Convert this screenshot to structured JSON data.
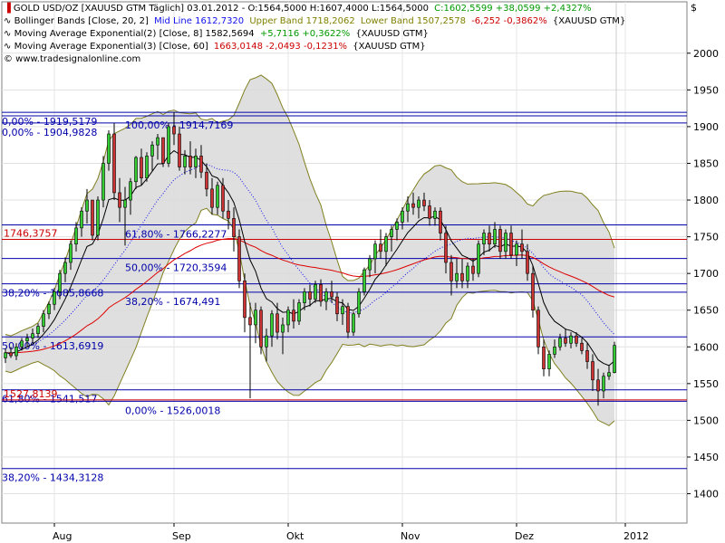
{
  "legend": {
    "line1": {
      "prefix": "GOLD USD/OZ [XAUUSD GTM  Täglich] 03.01.2012 - O:1564,5000 H:1607,4000 L:1564,5000",
      "change": "C:1602,5599 +38,0599 +2,4327%"
    },
    "line2": {
      "name": "Bollinger Bands [Close, 20, 2]",
      "mid": "Mid Line 1612,7320",
      "upper": "Upper Band 1718,2062",
      "lower": "Lower Band 1507,2578",
      "change": "-6,252 -0,3862%",
      "suffix": "{XAUUSD GTM}"
    },
    "line3": {
      "name": "Moving Average Exponential(2) [Close, 8] 1582,5694",
      "change": "+5,7116 +0,3622%",
      "suffix": "{XAUUSD GTM}"
    },
    "line4": {
      "name": "Moving Average Exponential(3) [Close, 60]",
      "value": "1663,0148 -2,0493 -0,1231%",
      "suffix": "{XAUUSD GTM}"
    },
    "copyright": "© www.tradesignalonline.com"
  },
  "currency_symbol": "$",
  "colors": {
    "background": "#ffffff",
    "band_fill": "#d9d9d9",
    "band_line": "#808020",
    "up_candle": "#33cc33",
    "down_candle": "#cc3333",
    "ema_fast": "#000000",
    "ema_slow": "#dd0000",
    "mid_line": "#1010ee",
    "fib_line": "#0000aa",
    "fib_text": "#0000aa",
    "level_red": "#cc0000",
    "gain": "#009900",
    "loss": "#cc0000",
    "upper_band_text": "#808000"
  },
  "chart_data": {
    "type": "candlestick",
    "title": "GOLD USD/OZ [XAUUSD GTM  Täglich]",
    "ylim": [
      1360,
      2070
    ],
    "y_ticks": [
      1400,
      1450,
      1500,
      1550,
      1600,
      1650,
      1700,
      1750,
      1800,
      1850,
      1900,
      1950,
      2000
    ],
    "x_ticks": [
      {
        "index": 9,
        "label": "Aug"
      },
      {
        "index": 31,
        "label": "Sep"
      },
      {
        "index": 52,
        "label": "Okt"
      },
      {
        "index": 73,
        "label": "Nov"
      },
      {
        "index": 94,
        "label": "Dez"
      },
      {
        "index": 114,
        "label": "2012"
      }
    ],
    "fib_levels": [
      {
        "value": 1919.5179,
        "label": "0,00% - 1919,5179",
        "label_index": 0
      },
      {
        "value": 1914.7169,
        "label": "100,00% - 1914,7169",
        "label_index": 22
      },
      {
        "value": 1904.9828,
        "label": "0,00% - 1904,9828",
        "label_index": 0
      },
      {
        "value": 1766.2277,
        "label": "61,80% - 1766,2277",
        "label_index": 22
      },
      {
        "value": 1720.3594,
        "label": "50,00% - 1720,3594",
        "label_index": 22
      },
      {
        "value": 1685.8668,
        "label": "38,20% - 1685,8668",
        "label_index": 0
      },
      {
        "value": 1674.491,
        "label": "38,20% - 1674,491",
        "label_index": 22
      },
      {
        "value": 1613.6919,
        "label": "50,00% - 1613,6919",
        "label_index": 0
      },
      {
        "value": 1541.517,
        "label": "61,80% - 1541,517",
        "label_index": 0
      },
      {
        "value": 1526.0018,
        "label": "0,00% - 1526,0018",
        "label_index": 22
      },
      {
        "value": 1434.3128,
        "label": "38,20% - 1434,3128",
        "label_index": 0
      }
    ],
    "red_levels": [
      {
        "value": 1746.3757,
        "label": "1746,3757"
      },
      {
        "value": 1527.8,
        "label": "1527,8139"
      }
    ],
    "candles": [
      [
        1585,
        1598,
        1578,
        1592
      ],
      [
        1592,
        1600,
        1585,
        1588
      ],
      [
        1588,
        1605,
        1582,
        1600
      ],
      [
        1600,
        1612,
        1595,
        1608
      ],
      [
        1608,
        1618,
        1600,
        1612
      ],
      [
        1612,
        1625,
        1605,
        1618
      ],
      [
        1618,
        1632,
        1612,
        1628
      ],
      [
        1628,
        1650,
        1620,
        1645
      ],
      [
        1645,
        1662,
        1638,
        1658
      ],
      [
        1658,
        1680,
        1650,
        1675
      ],
      [
        1675,
        1705,
        1665,
        1700
      ],
      [
        1700,
        1722,
        1688,
        1715
      ],
      [
        1715,
        1745,
        1705,
        1740
      ],
      [
        1740,
        1770,
        1730,
        1762
      ],
      [
        1762,
        1790,
        1750,
        1785
      ],
      [
        1785,
        1815,
        1768,
        1800
      ],
      [
        1800,
        1800,
        1745,
        1752
      ],
      [
        1752,
        1805,
        1745,
        1800
      ],
      [
        1800,
        1860,
        1790,
        1850
      ],
      [
        1850,
        1895,
        1840,
        1890
      ],
      [
        1890,
        1905,
        1800,
        1810
      ],
      [
        1810,
        1830,
        1770,
        1790
      ],
      [
        1790,
        1818,
        1738,
        1800
      ],
      [
        1800,
        1830,
        1780,
        1825
      ],
      [
        1825,
        1860,
        1815,
        1858
      ],
      [
        1858,
        1870,
        1820,
        1830
      ],
      [
        1830,
        1865,
        1825,
        1860
      ],
      [
        1860,
        1880,
        1840,
        1875
      ],
      [
        1875,
        1890,
        1855,
        1885
      ],
      [
        1885,
        1885,
        1845,
        1850
      ],
      [
        1850,
        1905,
        1845,
        1900
      ],
      [
        1900,
        1920,
        1875,
        1890
      ],
      [
        1890,
        1900,
        1840,
        1845
      ],
      [
        1845,
        1868,
        1835,
        1860
      ],
      [
        1860,
        1880,
        1835,
        1845
      ],
      [
        1845,
        1870,
        1830,
        1860
      ],
      [
        1860,
        1875,
        1830,
        1838
      ],
      [
        1838,
        1850,
        1805,
        1815
      ],
      [
        1815,
        1830,
        1780,
        1790
      ],
      [
        1790,
        1825,
        1780,
        1820
      ],
      [
        1820,
        1830,
        1775,
        1785
      ],
      [
        1785,
        1800,
        1760,
        1775
      ],
      [
        1775,
        1790,
        1730,
        1750
      ],
      [
        1750,
        1760,
        1680,
        1690
      ],
      [
        1690,
        1700,
        1620,
        1640
      ],
      [
        1640,
        1660,
        1530,
        1630
      ],
      [
        1630,
        1660,
        1605,
        1650
      ],
      [
        1650,
        1655,
        1590,
        1600
      ],
      [
        1600,
        1625,
        1580,
        1615
      ],
      [
        1615,
        1650,
        1600,
        1645
      ],
      [
        1645,
        1660,
        1610,
        1620
      ],
      [
        1620,
        1640,
        1590,
        1630
      ],
      [
        1630,
        1655,
        1620,
        1650
      ],
      [
        1650,
        1665,
        1625,
        1635
      ],
      [
        1635,
        1665,
        1630,
        1660
      ],
      [
        1660,
        1680,
        1650,
        1675
      ],
      [
        1675,
        1685,
        1655,
        1665
      ],
      [
        1665,
        1690,
        1660,
        1685
      ],
      [
        1685,
        1692,
        1655,
        1662
      ],
      [
        1662,
        1680,
        1650,
        1675
      ],
      [
        1675,
        1690,
        1660,
        1668
      ],
      [
        1668,
        1675,
        1635,
        1645
      ],
      [
        1645,
        1665,
        1630,
        1655
      ],
      [
        1655,
        1660,
        1612,
        1620
      ],
      [
        1620,
        1648,
        1615,
        1645
      ],
      [
        1645,
        1680,
        1640,
        1675
      ],
      [
        1675,
        1708,
        1670,
        1705
      ],
      [
        1705,
        1725,
        1695,
        1720
      ],
      [
        1720,
        1745,
        1700,
        1740
      ],
      [
        1740,
        1760,
        1720,
        1730
      ],
      [
        1730,
        1755,
        1710,
        1750
      ],
      [
        1750,
        1765,
        1730,
        1760
      ],
      [
        1760,
        1775,
        1745,
        1770
      ],
      [
        1770,
        1790,
        1760,
        1785
      ],
      [
        1785,
        1805,
        1770,
        1795
      ],
      [
        1795,
        1810,
        1780,
        1790
      ],
      [
        1790,
        1805,
        1775,
        1800
      ],
      [
        1800,
        1810,
        1785,
        1792
      ],
      [
        1792,
        1800,
        1765,
        1775
      ],
      [
        1775,
        1790,
        1765,
        1785
      ],
      [
        1785,
        1790,
        1745,
        1755
      ],
      [
        1755,
        1765,
        1700,
        1715
      ],
      [
        1715,
        1725,
        1670,
        1690
      ],
      [
        1690,
        1720,
        1680,
        1700
      ],
      [
        1700,
        1720,
        1680,
        1690
      ],
      [
        1690,
        1715,
        1680,
        1710
      ],
      [
        1710,
        1720,
        1690,
        1700
      ],
      [
        1700,
        1745,
        1695,
        1740
      ],
      [
        1740,
        1760,
        1725,
        1755
      ],
      [
        1755,
        1765,
        1730,
        1740
      ],
      [
        1740,
        1770,
        1735,
        1760
      ],
      [
        1760,
        1765,
        1720,
        1730
      ],
      [
        1730,
        1760,
        1720,
        1755
      ],
      [
        1755,
        1765,
        1720,
        1725
      ],
      [
        1725,
        1745,
        1710,
        1740
      ],
      [
        1740,
        1760,
        1720,
        1730
      ],
      [
        1730,
        1740,
        1690,
        1700
      ],
      [
        1700,
        1710,
        1640,
        1650
      ],
      [
        1650,
        1655,
        1590,
        1600
      ],
      [
        1600,
        1610,
        1560,
        1570
      ],
      [
        1570,
        1595,
        1560,
        1590
      ],
      [
        1590,
        1610,
        1585,
        1600
      ],
      [
        1600,
        1618,
        1595,
        1612
      ],
      [
        1612,
        1625,
        1600,
        1605
      ],
      [
        1605,
        1620,
        1598,
        1615
      ],
      [
        1615,
        1620,
        1600,
        1605
      ],
      [
        1605,
        1612,
        1590,
        1595
      ],
      [
        1595,
        1605,
        1570,
        1580
      ],
      [
        1580,
        1590,
        1540,
        1555
      ],
      [
        1555,
        1570,
        1520,
        1540
      ],
      [
        1540,
        1565,
        1530,
        1560
      ],
      [
        1560,
        1575,
        1555,
        1565
      ],
      [
        1565,
        1607,
        1564,
        1602
      ]
    ]
  }
}
